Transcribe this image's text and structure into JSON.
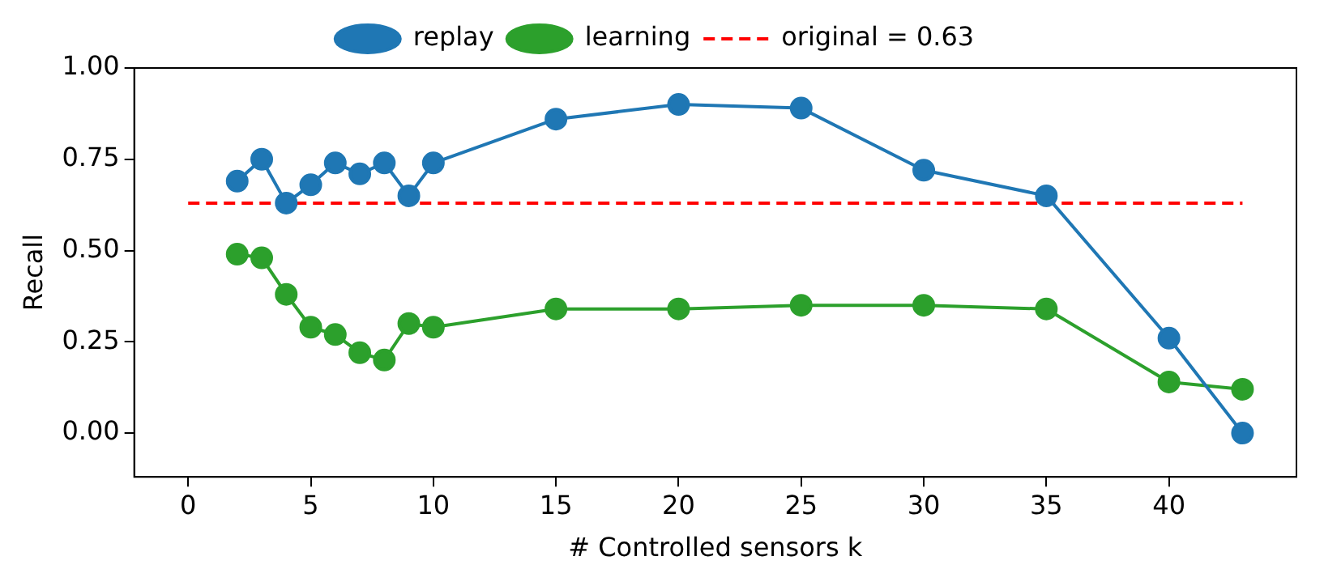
{
  "chart_data": {
    "type": "line",
    "xlabel": "# Controlled sensors k",
    "ylabel": "Recall",
    "xlim": [
      -2.2,
      45.2
    ],
    "xticks": [
      0,
      5,
      10,
      15,
      20,
      25,
      30,
      35,
      40
    ],
    "ylim": [
      -0.12,
      1.0
    ],
    "yticks": [
      {
        "value": 0,
        "label": "0.00"
      },
      0.25,
      {
        "value": 0.5,
        "label": "0.50"
      },
      0.75,
      {
        "value": 1,
        "label": "1.00"
      }
    ],
    "x": [
      2,
      3,
      4,
      5,
      6,
      7,
      8,
      9,
      10,
      15,
      20,
      25,
      30,
      35,
      40,
      43
    ],
    "legend": "top",
    "grid": false,
    "series": [
      {
        "name": "replay",
        "color": "#1f77b4",
        "marker": "circle",
        "line_style": "solid",
        "values": [
          0.69,
          0.75,
          0.63,
          0.68,
          0.74,
          0.71,
          0.74,
          0.65,
          0.74,
          0.86,
          0.9,
          0.89,
          0.72,
          0.65,
          0.26,
          0.0
        ]
      },
      {
        "name": "learning",
        "color": "#2ca02c",
        "marker": "circle",
        "line_style": "solid",
        "values": [
          0.49,
          0.48,
          0.38,
          0.29,
          0.27,
          0.22,
          0.2,
          0.3,
          0.29,
          0.34,
          0.34,
          0.35,
          0.35,
          0.34,
          0.14,
          0.12
        ]
      },
      {
        "name": "original = 0.63",
        "color": "#ff0000",
        "marker": "none",
        "line_style": "dashed",
        "x": [
          0,
          43
        ],
        "values": [
          0.63,
          0.63
        ]
      }
    ]
  }
}
